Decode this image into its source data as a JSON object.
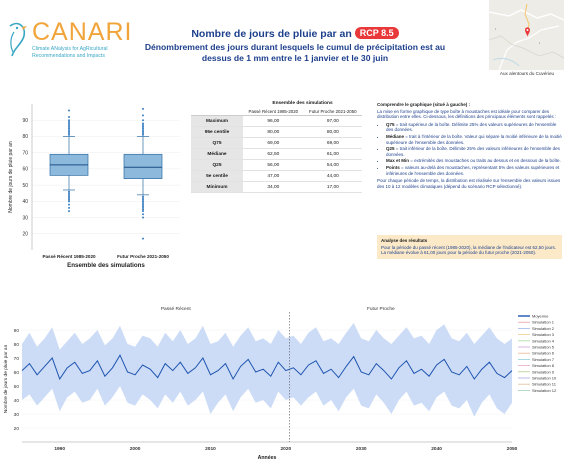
{
  "logo": {
    "word": "CANARI",
    "tagline": "Climate ANalysis for AgRicultural Recommendations and Impacts"
  },
  "header": {
    "title": "Nombre de jours de pluie par an",
    "scenario_badge": "RCP 8.5",
    "subtitle": "Dénombrement des jours durant lesquels le cumul de précipitation est au dessus de 1 mm entre le 1 janvier et le 30 juin"
  },
  "map": {
    "caption": "Aux alentours du Cuvérieu"
  },
  "stats_table": {
    "caption": "Ensemble des simulations",
    "columns": [
      "Passé Récent 1985-2020",
      "Futur Proche 2021-2050"
    ],
    "rows": [
      {
        "label": "Maximum",
        "values": [
          "96,00",
          "97,00"
        ]
      },
      {
        "label": "95e centile",
        "values": [
          "80,00",
          "80,00"
        ]
      },
      {
        "label": "Q75",
        "values": [
          "69,00",
          "69,00"
        ]
      },
      {
        "label": "Médiane",
        "values": [
          "62,50",
          "61,00"
        ]
      },
      {
        "label": "Q25",
        "values": [
          "56,00",
          "54,00"
        ]
      },
      {
        "label": "5e centile",
        "values": [
          "47,00",
          "44,00"
        ]
      },
      {
        "label": "Minimum",
        "values": [
          "34,00",
          "17,00"
        ]
      }
    ]
  },
  "explain": {
    "heading": "Comprendre le graphique (situé à gauche) :",
    "intro": "La mise en forme graphique de type boîte à moustaches est idéale pour comparer des distribution entre elles. Ci-dessous, les définitions des principaux éléments sont rappelés :",
    "items": [
      {
        "term": "Q75",
        "text": " = trait supérieur de la boîte. Délimite 25% des valeurs supérieures de l'ensemble des données."
      },
      {
        "term": "Médiane",
        "text": " = trait à l'intérieur de la boîte. Valeur qui sépare la moitié inférieure de la moitié supérieure de l'ensemble des données."
      },
      {
        "term": "Q25",
        "text": " = trait inférieur de la boîte. Délimite 25% des valeurs inférieures de l'ensemble des données."
      },
      {
        "term": "Max et Min",
        "text": " = extrémités des moustaches ou traits au dessus et en dessous de la boîte."
      },
      {
        "term": "Points",
        "text": " = valeurs au-delà des moustaches, représentant 5% des valeurs supérieures et inférieures de l'ensemble des données."
      }
    ],
    "note": "Pour chaque période de temps, la distribution est réalisée sur l'ensemble des valeurs issues des 10 à 12 modèles climatiques (dépend du scénario RCP sélectionné)."
  },
  "analysis": {
    "heading": "Analyse des résultats",
    "text": "Pour la période du passé récent (1985-2020), la médiane de l'indicateur est 62,50 jours. La médiane évolue à 61,00 jours pour la période du futur proche (2021-2050)."
  },
  "colors": {
    "title": "#1d3f8c",
    "badge": "#e8383a",
    "box_fill": "#8db9dc",
    "box_stroke": "#2e6da4",
    "mean_line": "#1f55b0",
    "envelope": "#c6d8f5",
    "analysis_bg": "#fbe9c8",
    "logo": "#f0a43a",
    "logo_tag": "#3aa6c6"
  },
  "chart_data": [
    {
      "type": "box",
      "ylabel": "Nombre de jours de pluie par an",
      "xlabel": "Ensemble des simulations",
      "ylim": [
        10,
        100
      ],
      "yticks": [
        20,
        30,
        40,
        50,
        60,
        70,
        80,
        90
      ],
      "categories": [
        "Passé Récent 1985-2020",
        "Futur Proche 2021-2050"
      ],
      "boxes": [
        {
          "min": 47,
          "q1": 56,
          "median": 62.5,
          "q3": 69,
          "max": 80,
          "outliers_high": [
            81,
            82,
            83,
            84,
            85,
            86,
            87,
            88,
            89,
            90,
            92,
            96
          ],
          "outliers_low": [
            46,
            45,
            44,
            43,
            42,
            41,
            40,
            38,
            36,
            34
          ]
        },
        {
          "min": 44,
          "q1": 54,
          "median": 61,
          "q3": 69,
          "max": 80,
          "outliers_high": [
            81,
            82,
            83,
            84,
            85,
            86,
            87,
            88,
            90,
            93,
            97
          ],
          "outliers_low": [
            43,
            42,
            41,
            40,
            39,
            38,
            37,
            36,
            35,
            34,
            32,
            30,
            17
          ]
        }
      ]
    },
    {
      "type": "line",
      "xlabel": "Années",
      "ylabel": "Nombre de jours de pluie par an",
      "xlim": [
        1985,
        2050
      ],
      "ylim": [
        10,
        100
      ],
      "xticks": [
        1990,
        2000,
        2010,
        2020,
        2030,
        2040,
        2050
      ],
      "yticks": [
        20,
        30,
        40,
        50,
        60,
        70,
        80,
        90
      ],
      "period_labels": [
        "Passé Récent",
        "Futur Proche"
      ],
      "divider_x": 2020.5,
      "x": [
        1985,
        1986,
        1987,
        1988,
        1989,
        1990,
        1991,
        1992,
        1993,
        1994,
        1995,
        1996,
        1997,
        1998,
        1999,
        2000,
        2001,
        2002,
        2003,
        2004,
        2005,
        2006,
        2007,
        2008,
        2009,
        2010,
        2011,
        2012,
        2013,
        2014,
        2015,
        2016,
        2017,
        2018,
        2019,
        2020,
        2021,
        2022,
        2023,
        2024,
        2025,
        2026,
        2027,
        2028,
        2029,
        2030,
        2031,
        2032,
        2033,
        2034,
        2035,
        2036,
        2037,
        2038,
        2039,
        2040,
        2041,
        2042,
        2043,
        2044,
        2045,
        2046,
        2047,
        2048,
        2049,
        2050
      ],
      "series": [
        {
          "name": "Moyenne",
          "role": "mean",
          "values": [
            61,
            66,
            58,
            64,
            70,
            55,
            63,
            67,
            59,
            61,
            68,
            57,
            63,
            72,
            60,
            58,
            65,
            62,
            56,
            66,
            61,
            67,
            59,
            63,
            70,
            58,
            61,
            66,
            55,
            64,
            69,
            60,
            62,
            57,
            67,
            61,
            63,
            58,
            65,
            68,
            59,
            62,
            56,
            64,
            71,
            60,
            58,
            66,
            61,
            55,
            63,
            68,
            59,
            62,
            57,
            65,
            69,
            60,
            58,
            64,
            55,
            62,
            67,
            59,
            56,
            61
          ]
        },
        {
          "name": "Enveloppe haute",
          "role": "upper",
          "values": [
            80,
            88,
            78,
            84,
            92,
            76,
            82,
            88,
            80,
            84,
            90,
            79,
            84,
            93,
            80,
            78,
            86,
            84,
            78,
            88,
            82,
            90,
            80,
            84,
            93,
            80,
            82,
            88,
            78,
            86,
            92,
            82,
            84,
            80,
            90,
            84,
            86,
            80,
            88,
            92,
            82,
            84,
            80,
            88,
            95,
            84,
            82,
            90,
            84,
            80,
            86,
            92,
            84,
            86,
            80,
            90,
            94,
            84,
            82,
            88,
            80,
            86,
            92,
            84,
            80,
            84
          ]
        },
        {
          "name": "Enveloppe basse",
          "role": "lower",
          "values": [
            40,
            44,
            36,
            42,
            48,
            32,
            42,
            46,
            38,
            40,
            48,
            36,
            42,
            50,
            38,
            36,
            44,
            40,
            34,
            44,
            38,
            46,
            36,
            40,
            46,
            30,
            38,
            44,
            32,
            42,
            48,
            38,
            40,
            34,
            46,
            40,
            42,
            36,
            42,
            46,
            36,
            40,
            32,
            42,
            48,
            36,
            34,
            44,
            38,
            30,
            40,
            46,
            36,
            38,
            32,
            42,
            46,
            36,
            34,
            40,
            28,
            38,
            44,
            34,
            30,
            38
          ]
        }
      ],
      "legend_entries": [
        "Moyenne",
        "Simulation 1",
        "Simulation 2",
        "Simulation 3",
        "Simulation 4",
        "Simulation 5",
        "Simulation 6",
        "Simulation 7",
        "Simulation 8",
        "Simulation 9",
        "Simulation 10",
        "Simulation 11",
        "Simulation 12"
      ],
      "legend_colors": [
        "#1f55b0",
        "#e8a0a0",
        "#a0b8e8",
        "#e8d090",
        "#a8d8a0",
        "#d0a0e0",
        "#f0b890",
        "#90d0d8",
        "#e8a8c8",
        "#b8c890",
        "#a8a8e8",
        "#e0c0a0",
        "#a0d0b8"
      ]
    }
  ]
}
